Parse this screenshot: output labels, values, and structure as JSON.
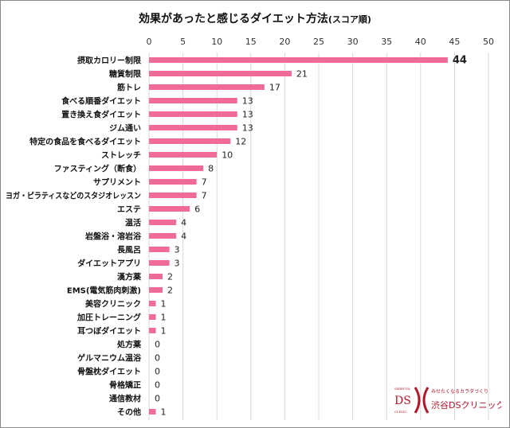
{
  "chart_data": {
    "type": "bar",
    "orientation": "horizontal",
    "title": "効果があったと感じるダイエット方法",
    "subtitle": "(スコア順)",
    "xlim": [
      0,
      50
    ],
    "xticks": [
      0,
      5,
      10,
      15,
      20,
      25,
      30,
      35,
      40,
      45,
      50
    ],
    "xaxis_position": "top",
    "grid": true,
    "bar_color": "#f06a9a",
    "categories": [
      "摂取カロリー制限",
      "糖質制限",
      "筋トレ",
      "食べる順番ダイエット",
      "置き換え食ダイエット",
      "ジム通い",
      "特定の食品を食べるダイエット",
      "ストレッチ",
      "ファスティング（断食）",
      "サプリメント",
      "ヨガ・ピラティスなどのスタジオレッスン",
      "エステ",
      "温活",
      "岩盤浴・溶岩浴",
      "長風呂",
      "ダイエットアプリ",
      "漢方薬",
      "EMS(電気筋肉刺激)",
      "美容クリニック",
      "加圧トレーニング",
      "耳つぼダイエット",
      "処方薬",
      "ゲルマニウム温浴",
      "骨盤枕ダイエット",
      "骨格矯正",
      "通信教材",
      "その他"
    ],
    "values": [
      44,
      21,
      17,
      13,
      13,
      13,
      12,
      10,
      8,
      7,
      7,
      6,
      4,
      4,
      3,
      3,
      2,
      2,
      1,
      1,
      1,
      0,
      0,
      0,
      0,
      0,
      1
    ]
  },
  "logo": {
    "brand_small": "SHIBUYA",
    "brand_ds": "DS",
    "brand_clinic": "CLINIC",
    "tagline": "みせたくなるカラダづくり",
    "name": "渋谷DSクリニック",
    "color": "#b0182a"
  }
}
